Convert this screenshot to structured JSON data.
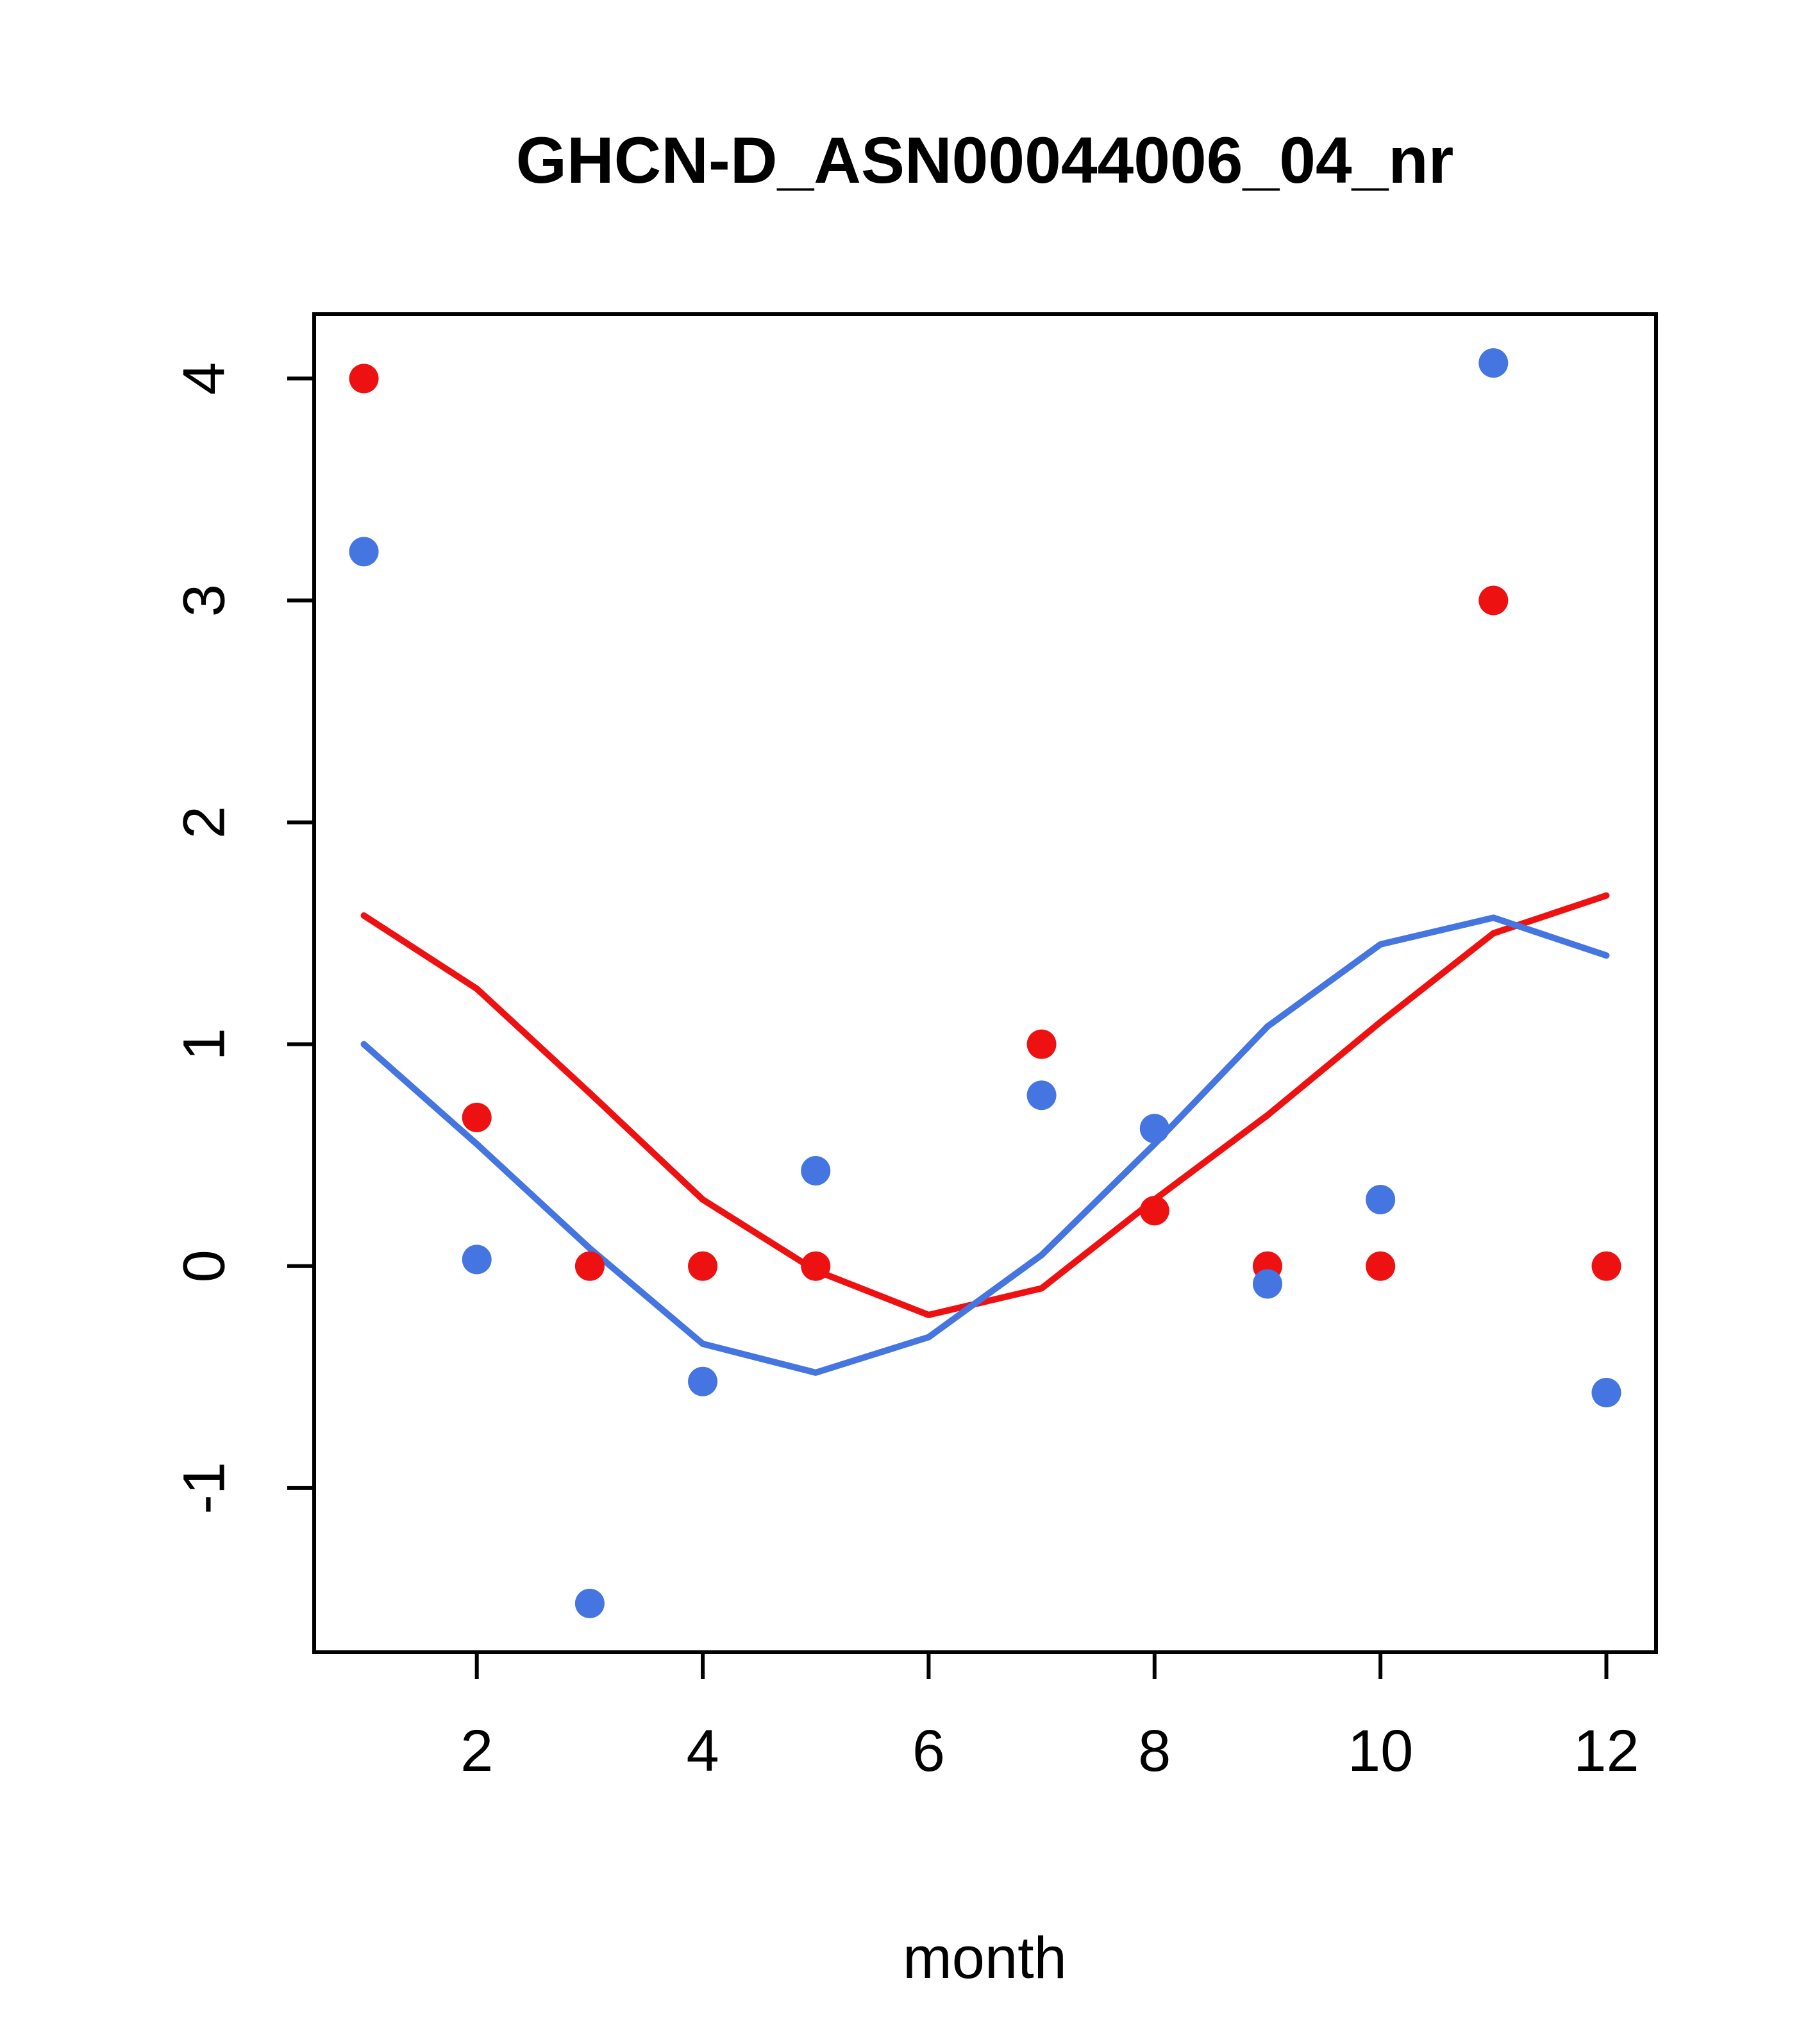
{
  "chart_data": {
    "type": "scatter",
    "title": "GHCN-D_ASN00044006_04_nr",
    "xlabel": "month",
    "ylabel": "",
    "xlim": [
      0.56,
      12.44
    ],
    "ylim": [
      -1.74,
      4.29
    ],
    "x_ticks": [
      2,
      4,
      6,
      8,
      10,
      12
    ],
    "y_ticks": [
      -1,
      0,
      1,
      2,
      3,
      4
    ],
    "grid": false,
    "legend": "none",
    "colors": {
      "red": "#ee1111",
      "blue": "#4575e0"
    },
    "series": [
      {
        "name": "red-points",
        "kind": "points",
        "color_key": "red",
        "x": [
          1,
          2,
          3,
          4,
          5,
          7,
          8,
          9,
          10,
          11,
          12
        ],
        "y": [
          4.0,
          0.67,
          0.0,
          0.0,
          0.0,
          1.0,
          0.25,
          0.0,
          0.0,
          3.0,
          0.0
        ]
      },
      {
        "name": "blue-points",
        "kind": "points",
        "color_key": "blue",
        "x": [
          1,
          2,
          3,
          4,
          5,
          7,
          8,
          9,
          10,
          11,
          12
        ],
        "y": [
          3.22,
          0.03,
          -1.52,
          -0.52,
          0.43,
          0.77,
          0.62,
          -0.08,
          0.3,
          4.07,
          -0.57
        ]
      },
      {
        "name": "red-smooth-line",
        "kind": "line",
        "color_key": "red",
        "x": [
          1,
          2,
          3,
          4,
          5,
          6,
          7,
          8,
          9,
          10,
          11,
          12
        ],
        "y": [
          1.58,
          1.25,
          0.78,
          0.3,
          -0.02,
          -0.22,
          -0.1,
          0.3,
          0.68,
          1.1,
          1.5,
          1.67
        ]
      },
      {
        "name": "blue-smooth-line",
        "kind": "line",
        "color_key": "blue",
        "x": [
          1,
          2,
          3,
          4,
          5,
          6,
          7,
          8,
          9,
          10,
          11,
          12
        ],
        "y": [
          1.0,
          0.55,
          0.08,
          -0.35,
          -0.48,
          -0.32,
          0.05,
          0.55,
          1.08,
          1.45,
          1.57,
          1.4
        ]
      }
    ]
  }
}
